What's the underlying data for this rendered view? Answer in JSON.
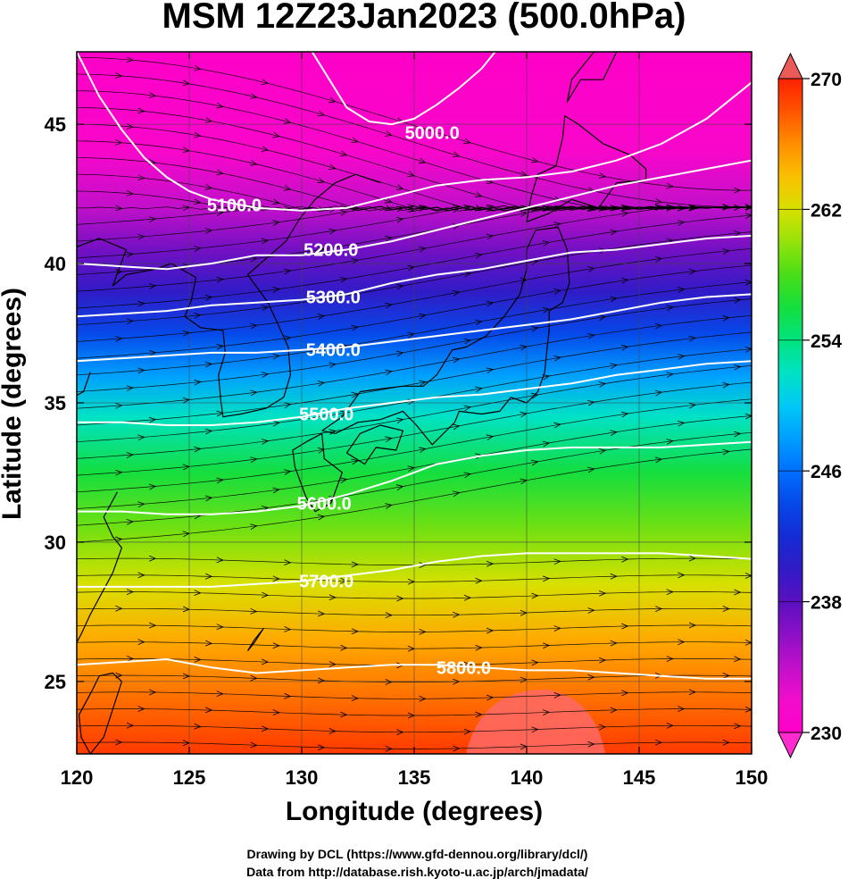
{
  "title": "MSM 12Z23Jan2023 (500.0hPa)",
  "xlabel": "Longitude (degrees)",
  "ylabel": "Latitude  (degrees)",
  "credits": [
    "Drawing by DCL (https://www.gfd-dennou.org/library/dcl/)",
    "Data from http://database.rish.kyoto-u.ac.jp/arch/jmadata/"
  ],
  "chart_data": {
    "type": "heatmap",
    "title": "MSM 12Z23Jan2023 (500.0hPa)",
    "xlabel": "Longitude (degrees)",
    "ylabel": "Latitude  (degrees)",
    "xlim": [
      120,
      150
    ],
    "ylim": [
      22.4,
      47.6
    ],
    "x_ticks": [
      120,
      125,
      130,
      135,
      140,
      145,
      150
    ],
    "y_ticks": [
      25,
      30,
      35,
      40,
      45
    ],
    "colorbar": {
      "range": [
        230,
        270
      ],
      "ticks": [
        230,
        238,
        246,
        254,
        262,
        270
      ]
    },
    "shading_temperature_profile": [
      {
        "lat": 22.4,
        "t": 269
      },
      {
        "lat": 24.5,
        "t": 267
      },
      {
        "lat": 26.5,
        "t": 265
      },
      {
        "lat": 28.5,
        "t": 262
      },
      {
        "lat": 30.5,
        "t": 259
      },
      {
        "lat": 32.5,
        "t": 256
      },
      {
        "lat": 34.5,
        "t": 252
      },
      {
        "lat": 36.0,
        "t": 248
      },
      {
        "lat": 37.5,
        "t": 244
      },
      {
        "lat": 39.0,
        "t": 240
      },
      {
        "lat": 40.5,
        "t": 237
      },
      {
        "lat": 42.0,
        "t": 234
      },
      {
        "lat": 44.0,
        "t": 231
      },
      {
        "lat": 47.6,
        "t": 230
      }
    ],
    "contours": [
      {
        "label": "5000.0",
        "label_pos": [
          135.8,
          44.7
        ],
        "points": [
          [
            130,
            48.2
          ],
          [
            131,
            46.9
          ],
          [
            132,
            45.6
          ],
          [
            133,
            45.1
          ],
          [
            134,
            45.0
          ],
          [
            135,
            45.2
          ],
          [
            136,
            45.7
          ],
          [
            137,
            46.3
          ],
          [
            138,
            47.0
          ],
          [
            139,
            48.0
          ]
        ]
      },
      {
        "label": "5100.0",
        "label_pos": [
          127,
          42.1
        ],
        "points": [
          [
            120,
            47.6
          ],
          [
            121,
            46.0
          ],
          [
            122,
            44.8
          ],
          [
            123,
            43.8
          ],
          [
            124,
            43.1
          ],
          [
            125,
            42.6
          ],
          [
            126,
            42.3
          ],
          [
            128,
            42.0
          ],
          [
            130,
            41.9
          ],
          [
            132,
            42.0
          ],
          [
            134,
            42.4
          ],
          [
            136,
            42.8
          ],
          [
            138,
            43.0
          ],
          [
            140,
            43.1
          ],
          [
            142,
            43.3
          ],
          [
            144,
            43.7
          ],
          [
            146,
            44.3
          ],
          [
            148,
            45.2
          ],
          [
            150,
            46.5
          ]
        ]
      },
      {
        "label": "5200.0",
        "label_pos": [
          131.3,
          40.5
        ],
        "points": [
          [
            120,
            40.0
          ],
          [
            122,
            39.9
          ],
          [
            124,
            39.8
          ],
          [
            126,
            40.0
          ],
          [
            128,
            40.3
          ],
          [
            130,
            40.3
          ],
          [
            132,
            40.5
          ],
          [
            134,
            40.8
          ],
          [
            136,
            41.2
          ],
          [
            138,
            41.6
          ],
          [
            140,
            42.0
          ],
          [
            142,
            42.4
          ],
          [
            144,
            42.8
          ],
          [
            146,
            43.1
          ],
          [
            148,
            43.4
          ],
          [
            150,
            43.7
          ]
        ]
      },
      {
        "label": "5300.0",
        "label_pos": [
          131.4,
          38.8
        ],
        "points": [
          [
            120,
            38.1
          ],
          [
            122,
            38.2
          ],
          [
            124,
            38.3
          ],
          [
            126,
            38.5
          ],
          [
            128,
            38.6
          ],
          [
            130,
            38.7
          ],
          [
            132,
            38.9
          ],
          [
            134,
            39.3
          ],
          [
            136,
            39.6
          ],
          [
            138,
            39.8
          ],
          [
            140,
            40.1
          ],
          [
            142,
            40.4
          ],
          [
            144,
            40.5
          ],
          [
            146,
            40.7
          ],
          [
            148,
            40.9
          ],
          [
            150,
            41.0
          ]
        ]
      },
      {
        "label": "5400.0",
        "label_pos": [
          131.4,
          36.9
        ],
        "points": [
          [
            120,
            36.5
          ],
          [
            122,
            36.6
          ],
          [
            124,
            36.7
          ],
          [
            126,
            36.8
          ],
          [
            128,
            36.8
          ],
          [
            130,
            36.9
          ],
          [
            132,
            37.0
          ],
          [
            134,
            37.2
          ],
          [
            136,
            37.4
          ],
          [
            138,
            37.6
          ],
          [
            140,
            37.8
          ],
          [
            142,
            38.0
          ],
          [
            144,
            38.3
          ],
          [
            146,
            38.6
          ],
          [
            148,
            38.8
          ],
          [
            150,
            38.9
          ]
        ]
      },
      {
        "label": "5500.0",
        "label_pos": [
          131.1,
          34.6
        ],
        "points": [
          [
            120,
            34.3
          ],
          [
            122,
            34.3
          ],
          [
            124,
            34.2
          ],
          [
            126,
            34.2
          ],
          [
            128,
            34.3
          ],
          [
            130,
            34.5
          ],
          [
            132,
            34.8
          ],
          [
            134,
            35.0
          ],
          [
            136,
            35.2
          ],
          [
            138,
            35.3
          ],
          [
            140,
            35.5
          ],
          [
            142,
            35.7
          ],
          [
            144,
            36.0
          ],
          [
            146,
            36.2
          ],
          [
            148,
            36.4
          ],
          [
            150,
            36.5
          ]
        ]
      },
      {
        "label": "5600.0",
        "label_pos": [
          131.0,
          31.4
        ],
        "points": [
          [
            120,
            31.1
          ],
          [
            122,
            31.1
          ],
          [
            124,
            31.0
          ],
          [
            126,
            31.0
          ],
          [
            128,
            31.1
          ],
          [
            130,
            31.3
          ],
          [
            132,
            31.7
          ],
          [
            134,
            32.2
          ],
          [
            136,
            32.8
          ],
          [
            138,
            33.1
          ],
          [
            140,
            33.3
          ],
          [
            142,
            33.4
          ],
          [
            144,
            33.4
          ],
          [
            146,
            33.4
          ],
          [
            148,
            33.5
          ],
          [
            150,
            33.6
          ]
        ]
      },
      {
        "label": "5700.0",
        "label_pos": [
          131.1,
          28.6
        ],
        "points": [
          [
            120,
            28.4
          ],
          [
            122,
            28.4
          ],
          [
            124,
            28.4
          ],
          [
            126,
            28.4
          ],
          [
            128,
            28.5
          ],
          [
            130,
            28.6
          ],
          [
            132,
            28.8
          ],
          [
            134,
            29.0
          ],
          [
            136,
            29.3
          ],
          [
            138,
            29.5
          ],
          [
            140,
            29.6
          ],
          [
            142,
            29.6
          ],
          [
            144,
            29.6
          ],
          [
            146,
            29.6
          ],
          [
            148,
            29.5
          ],
          [
            150,
            29.4
          ]
        ]
      },
      {
        "label": "5800.0",
        "label_pos": [
          137.2,
          25.5
        ],
        "points": [
          [
            120,
            25.6
          ],
          [
            122,
            25.7
          ],
          [
            124,
            25.8
          ],
          [
            126,
            25.5
          ],
          [
            128,
            25.3
          ],
          [
            130,
            25.4
          ],
          [
            132,
            25.5
          ],
          [
            134,
            25.6
          ],
          [
            136,
            25.6
          ],
          [
            138,
            25.5
          ],
          [
            140,
            25.4
          ],
          [
            142,
            25.4
          ],
          [
            144,
            25.3
          ],
          [
            146,
            25.2
          ],
          [
            148,
            25.1
          ],
          [
            150,
            25.1
          ]
        ]
      }
    ]
  }
}
